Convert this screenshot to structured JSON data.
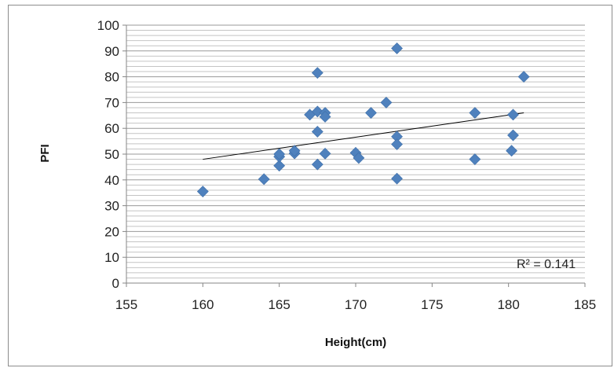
{
  "chart_data": {
    "type": "scatter",
    "xlabel": "Height(cm)",
    "ylabel": "PFI",
    "xlim": [
      155,
      185
    ],
    "ylim": [
      0,
      100
    ],
    "x_ticks": [
      "155",
      "160",
      "165",
      "170",
      "175",
      "180",
      "185"
    ],
    "y_ticks": [
      "0",
      "10",
      "20",
      "30",
      "40",
      "50",
      "60",
      "70",
      "80",
      "90",
      "100"
    ],
    "y_minor_gridlines_every": 2,
    "grid": "horizontal",
    "marker": "diamond",
    "marker_color": "#4F81BD",
    "trendline": {
      "type": "linear",
      "x": [
        160,
        181
      ],
      "y": [
        48.0,
        66.0
      ],
      "color": "#000000"
    },
    "annotation": "R² = 0.141",
    "points": [
      {
        "x": 160.0,
        "y": 35.5
      },
      {
        "x": 164.0,
        "y": 40.3
      },
      {
        "x": 165.0,
        "y": 45.5
      },
      {
        "x": 165.0,
        "y": 49.0
      },
      {
        "x": 165.0,
        "y": 50.0
      },
      {
        "x": 166.0,
        "y": 50.3
      },
      {
        "x": 166.0,
        "y": 51.3
      },
      {
        "x": 167.0,
        "y": 65.3
      },
      {
        "x": 167.5,
        "y": 58.7
      },
      {
        "x": 167.5,
        "y": 66.5
      },
      {
        "x": 167.5,
        "y": 81.5
      },
      {
        "x": 167.5,
        "y": 46.0
      },
      {
        "x": 168.0,
        "y": 66.0
      },
      {
        "x": 168.0,
        "y": 64.5
      },
      {
        "x": 168.0,
        "y": 50.2
      },
      {
        "x": 170.0,
        "y": 50.5
      },
      {
        "x": 170.2,
        "y": 48.5
      },
      {
        "x": 171.0,
        "y": 66.0
      },
      {
        "x": 172.0,
        "y": 70.0
      },
      {
        "x": 172.7,
        "y": 91.0
      },
      {
        "x": 172.7,
        "y": 56.8
      },
      {
        "x": 172.7,
        "y": 53.8
      },
      {
        "x": 172.7,
        "y": 40.5
      },
      {
        "x": 177.8,
        "y": 66.0
      },
      {
        "x": 177.8,
        "y": 48.0
      },
      {
        "x": 180.2,
        "y": 51.3
      },
      {
        "x": 180.3,
        "y": 57.3
      },
      {
        "x": 180.3,
        "y": 65.3
      },
      {
        "x": 181.0,
        "y": 80.0
      }
    ]
  }
}
